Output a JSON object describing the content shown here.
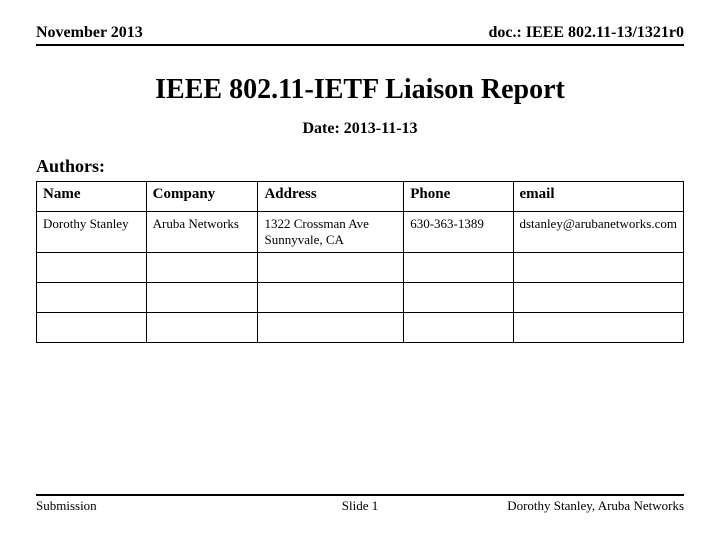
{
  "header": {
    "left": "November 2013",
    "right": "doc.: IEEE 802.11-13/1321r0"
  },
  "title": "IEEE 802.11-IETF Liaison Report",
  "date_line": "Date: 2013-11-13",
  "authors_label": "Authors:",
  "table": {
    "columns": [
      "Name",
      "Company",
      "Address",
      "Phone",
      "email"
    ],
    "col_widths_pct": [
      18,
      18,
      24,
      18,
      22
    ],
    "rows": [
      [
        "Dorothy Stanley",
        "Aruba Networks",
        "1322 Crossman Ave Sunnyvale, CA",
        "630-363-1389",
        "dstanley@arubanetworks.com"
      ],
      [
        "",
        "",
        "",
        "",
        ""
      ],
      [
        "",
        "",
        "",
        "",
        ""
      ],
      [
        "",
        "",
        "",
        "",
        ""
      ]
    ]
  },
  "footer": {
    "left": "Submission",
    "center": "Slide 1",
    "right": "Dorothy Stanley, Aruba Networks"
  }
}
